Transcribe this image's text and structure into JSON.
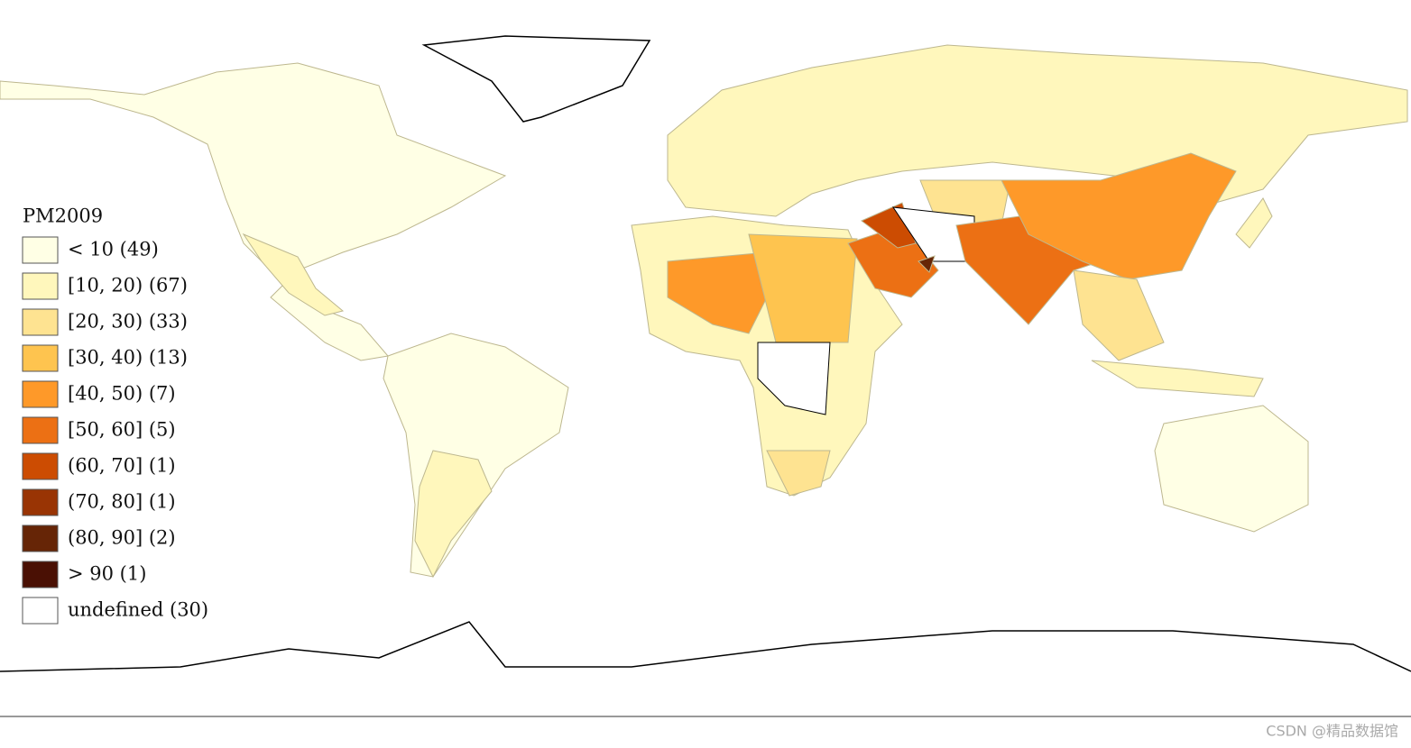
{
  "legend": {
    "title": "PM2009",
    "entries": [
      {
        "label": "< 10 (49)",
        "color": "#ffffe5"
      },
      {
        "label": "[10, 20) (67)",
        "color": "#fff7bc"
      },
      {
        "label": "[20, 30) (33)",
        "color": "#fee391"
      },
      {
        "label": "[30, 40) (13)",
        "color": "#fec44f"
      },
      {
        "label": "[40, 50) (7)",
        "color": "#fe9929"
      },
      {
        "label": "[50, 60] (5)",
        "color": "#ec7014"
      },
      {
        "label": "(60, 70] (1)",
        "color": "#cc4c02"
      },
      {
        "label": "(70, 80] (1)",
        "color": "#993404"
      },
      {
        "label": "(80, 90] (2)",
        "color": "#662506"
      },
      {
        "label": "> 90 (1)",
        "color": "#4a1004"
      },
      {
        "label": "undefined (30)",
        "color": "#ffffff"
      }
    ]
  },
  "watermark": "CSDN @精品数据馆"
}
